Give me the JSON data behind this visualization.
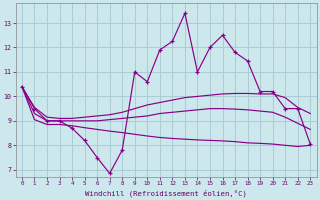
{
  "xlabel": "Windchill (Refroidissement éolien,°C)",
  "background_color": "#cce8ec",
  "grid_color": "#aaccd4",
  "line_color": "#880088",
  "x_hours": [
    0,
    1,
    2,
    3,
    4,
    5,
    6,
    7,
    8,
    9,
    10,
    11,
    12,
    13,
    14,
    15,
    16,
    17,
    18,
    19,
    20,
    21,
    22,
    23
  ],
  "temp_line": [
    10.4,
    9.5,
    9.0,
    9.0,
    8.7,
    8.2,
    7.5,
    6.85,
    7.8,
    11.0,
    10.6,
    11.9,
    12.25,
    13.4,
    11.0,
    12.0,
    12.5,
    11.8,
    11.45,
    10.2,
    10.2,
    9.5,
    9.5,
    8.05
  ],
  "line2": [
    10.4,
    9.55,
    9.15,
    9.1,
    9.1,
    9.15,
    9.2,
    9.25,
    9.35,
    9.5,
    9.65,
    9.75,
    9.85,
    9.95,
    10.0,
    10.05,
    10.1,
    10.12,
    10.12,
    10.1,
    10.1,
    9.95,
    9.55,
    9.3
  ],
  "line3": [
    10.4,
    9.3,
    9.0,
    9.0,
    9.0,
    9.0,
    9.0,
    9.05,
    9.1,
    9.15,
    9.2,
    9.3,
    9.35,
    9.4,
    9.45,
    9.5,
    9.5,
    9.48,
    9.45,
    9.4,
    9.35,
    9.15,
    8.9,
    8.65
  ],
  "line4": [
    10.4,
    9.05,
    8.85,
    8.85,
    8.8,
    8.72,
    8.65,
    8.58,
    8.52,
    8.45,
    8.38,
    8.32,
    8.28,
    8.25,
    8.22,
    8.2,
    8.18,
    8.15,
    8.1,
    8.08,
    8.05,
    8.0,
    7.95,
    8.0
  ],
  "ylim": [
    6.7,
    13.8
  ],
  "yticks": [
    7,
    8,
    9,
    10,
    11,
    12,
    13
  ],
  "xticks": [
    0,
    1,
    2,
    3,
    4,
    5,
    6,
    7,
    8,
    9,
    10,
    11,
    12,
    13,
    14,
    15,
    16,
    17,
    18,
    19,
    20,
    21,
    22,
    23
  ]
}
